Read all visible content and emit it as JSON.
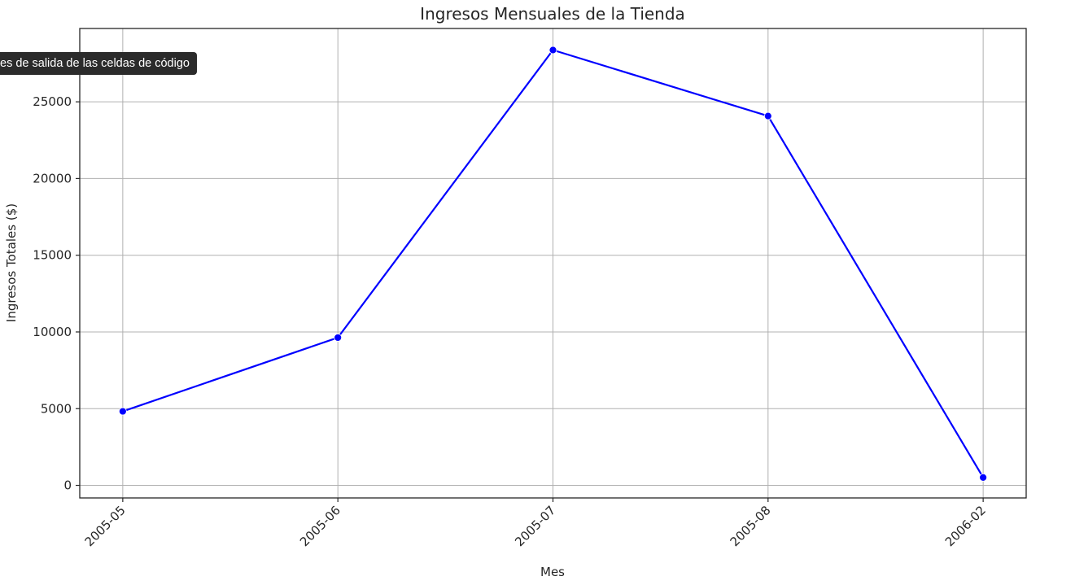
{
  "chart_data": {
    "type": "line",
    "title": "Ingresos Mensuales de la Tienda",
    "xlabel": "Mes",
    "ylabel": "Ingresos Totales ($)",
    "categories": [
      "2005-05",
      "2005-06",
      "2005-07",
      "2005-08",
      "2006-02"
    ],
    "series": [
      {
        "values": [
          4824.43,
          9631.88,
          28373.89,
          24072.13,
          514.18
        ]
      }
    ],
    "yticks": [
      0,
      5000,
      10000,
      15000,
      20000,
      25000
    ],
    "ylim": [
      -820,
      29780
    ],
    "grid": true,
    "line_color": "#0000ff",
    "marker_color": "#0000ff"
  },
  "tooltip": {
    "text": "es de salida de las celdas de código"
  }
}
